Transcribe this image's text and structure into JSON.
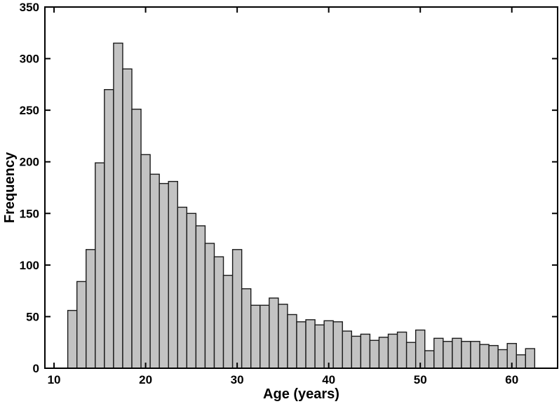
{
  "chart_data": {
    "type": "bar",
    "subtype": "histogram",
    "title": "",
    "xlabel": "Age (years)",
    "ylabel": "Frequency",
    "x": [
      12,
      13,
      14,
      15,
      16,
      17,
      18,
      19,
      20,
      21,
      22,
      23,
      24,
      25,
      26,
      27,
      28,
      29,
      30,
      31,
      32,
      33,
      34,
      35,
      36,
      37,
      38,
      39,
      40,
      41,
      42,
      43,
      44,
      45,
      46,
      47,
      48,
      49,
      50,
      51,
      52,
      53,
      54,
      55,
      56,
      57,
      58,
      59,
      60,
      61,
      62
    ],
    "values": [
      56,
      84,
      115,
      199,
      270,
      315,
      290,
      251,
      207,
      188,
      179,
      181,
      156,
      150,
      138,
      121,
      108,
      90,
      115,
      77,
      61,
      61,
      68,
      62,
      52,
      45,
      47,
      42,
      46,
      45,
      36,
      31,
      33,
      27,
      30,
      33,
      35,
      25,
      37,
      17,
      29,
      26,
      29,
      26,
      26,
      23,
      22,
      18,
      24,
      13,
      19
    ],
    "bin_width": 1,
    "xlim": [
      9,
      65
    ],
    "ylim": [
      0,
      350
    ],
    "x_ticks": [
      10,
      20,
      30,
      40,
      50,
      60
    ],
    "y_ticks": [
      0,
      50,
      100,
      150,
      200,
      250,
      300,
      350
    ],
    "grid": false,
    "legend_position": "none",
    "frame": "box",
    "tick_direction": "in",
    "colors": {
      "bar_fill": "#c3c3c3",
      "bar_stroke": "#1b1b1b",
      "axis": "#000000",
      "background": "#ffffff",
      "text": "#000000"
    }
  }
}
